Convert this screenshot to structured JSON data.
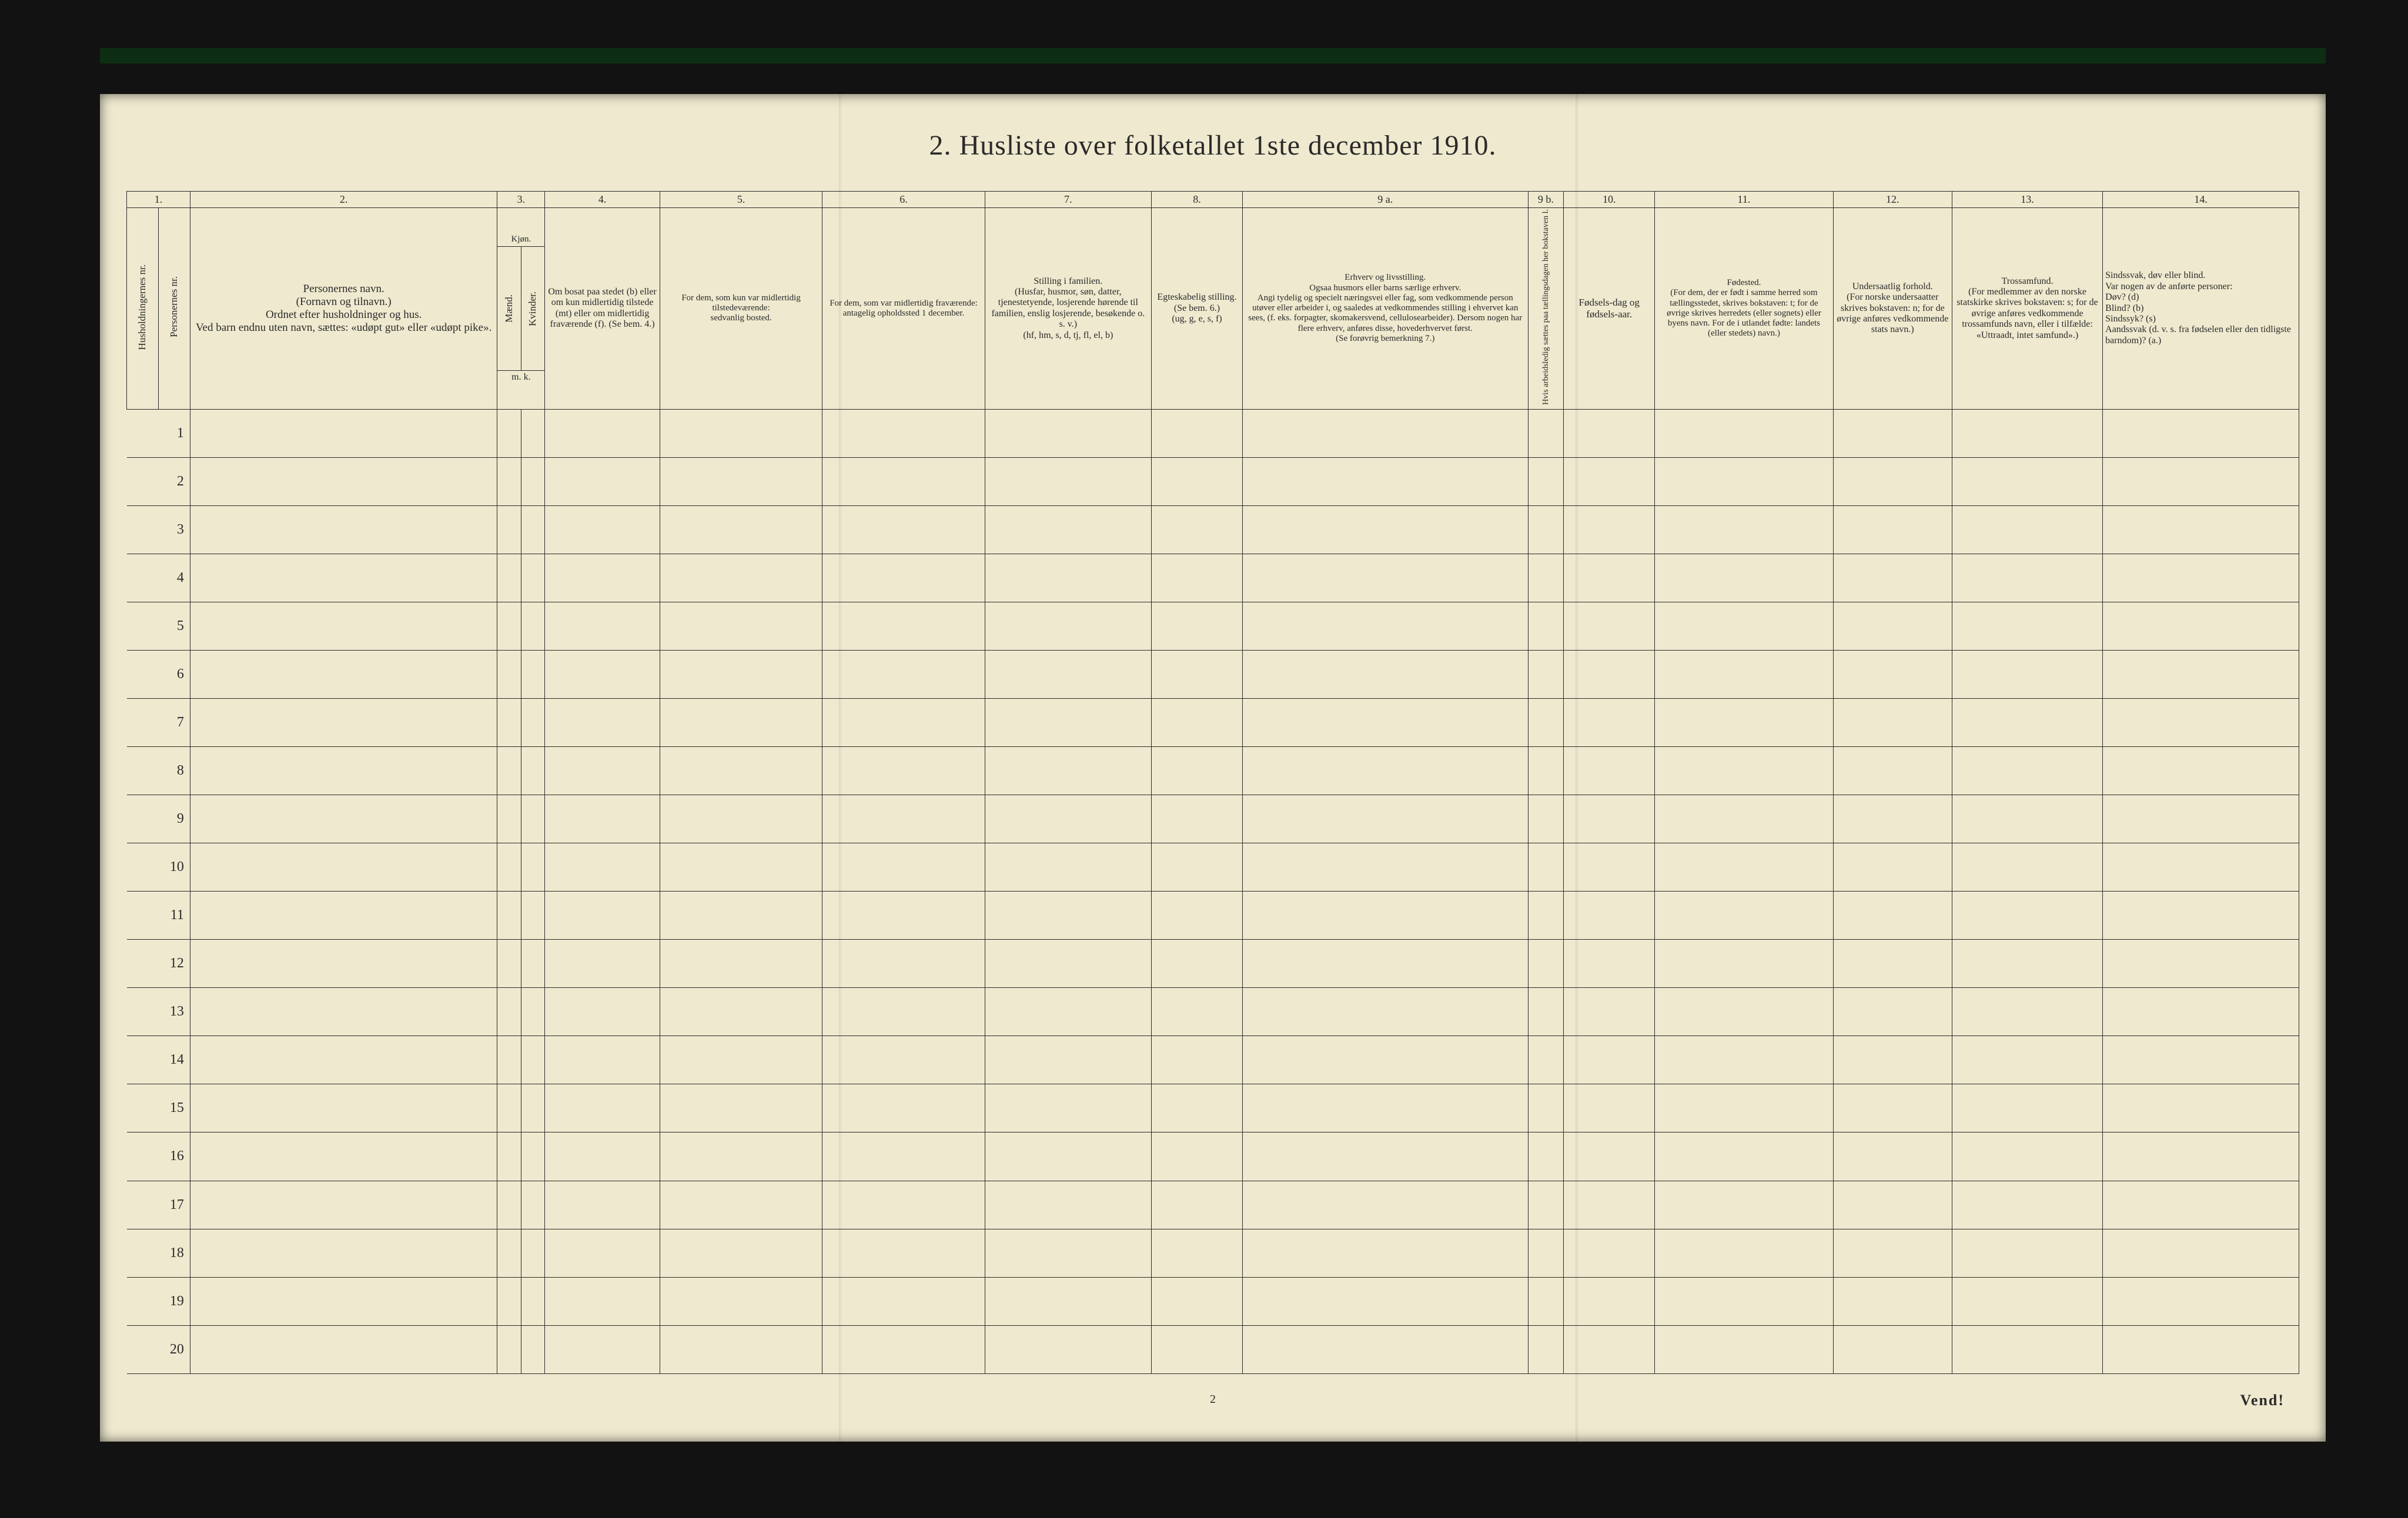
{
  "title": "2.   Husliste over folketallet 1ste december 1910.",
  "page_number": "2",
  "vend": "Vend!",
  "col_numbers": [
    "1.",
    "2.",
    "3.",
    "4.",
    "5.",
    "6.",
    "7.",
    "8.",
    "9 a.",
    "9 b.",
    "10.",
    "11.",
    "12.",
    "13.",
    "14."
  ],
  "headers": {
    "c1a": "Husholdningernes nr.",
    "c1b": "Personernes nr.",
    "c2": "Personernes navn.\n(Fornavn og tilnavn.)\nOrdnet efter husholdninger og hus.\nVed barn endnu uten navn, sættes: «udøpt gut» eller «udøpt pike».",
    "c3a": "Kjøn.",
    "c3m": "Mænd.",
    "c3k": "Kvinder.",
    "c3mk": "m.  k.",
    "c4": "Om bosat paa stedet (b) eller om kun midlertidig tilstede (mt) eller om midlertidig fraværende (f). (Se bem. 4.)",
    "c5": "For dem, som kun var midlertidig tilstedeværende:\nsedvanlig bosted.",
    "c6": "For dem, som var midlertidig fraværende:\nantagelig opholdssted 1 december.",
    "c7": "Stilling i familien.\n(Husfar, husmor, søn, datter, tjenestetyende, losjerende hørende til familien, enslig losjerende, besøkende o. s. v.)\n(hf, hm, s, d, tj, fl, el, b)",
    "c8": "Egteskabelig stilling.\n(Se bem. 6.)\n(ug, g, e, s, f)",
    "c9a": "Erhverv og livsstilling.\nOgsaa husmors eller barns særlige erhverv.\nAngi tydelig og specielt næringsvei eller fag, som vedkommende person utøver eller arbeider i, og saaledes at vedkommendes stilling i ehvervet kan sees, (f. eks. forpagter, skomakersvend, cellulosearbeider). Dersom nogen har flere erhverv, anføres disse, hovederhvervet først.\n(Se forøvrig bemerkning 7.)",
    "c9b": "Hvis arbeidsledig sættes paa tællingsdagen her bokstaven l.",
    "c10": "Fødsels-dag og fødsels-aar.",
    "c11": "Fødested.\n(For dem, der er født i samme herred som tællingsstedet, skrives bokstaven: t; for de øvrige skrives herredets (eller sognets) eller byens navn. For de i utlandet fødte: landets (eller stedets) navn.)",
    "c12": "Undersaatlig forhold.\n(For norske undersaatter skrives bokstaven: n; for de øvrige anføres vedkommende stats navn.)",
    "c13": "Trossamfund.\n(For medlemmer av den norske statskirke skrives bokstaven: s; for de øvrige anføres vedkommende trossamfunds navn, eller i tilfælde: «Uttraadt, intet samfund».)",
    "c14": "Sindssvak, døv eller blind.\nVar nogen av de anførte personer:\nDøv?        (d)\nBlind?       (b)\nSindssyk?  (s)\nAandssvak (d. v. s. fra fødselen eller den tidligste barndom)?  (a.)"
  },
  "rows": 20,
  "widths_pct": [
    1.6,
    1.6,
    15.5,
    1.2,
    1.2,
    5.8,
    8.2,
    8.2,
    8.4,
    4.6,
    14.4,
    1.8,
    4.6,
    9.0,
    6.0,
    7.6,
    9.9
  ],
  "colors": {
    "paper": "#efe9cf",
    "ink": "#2a2a2a",
    "scan_bg": "#121212",
    "topbar": "#0d2e12"
  }
}
